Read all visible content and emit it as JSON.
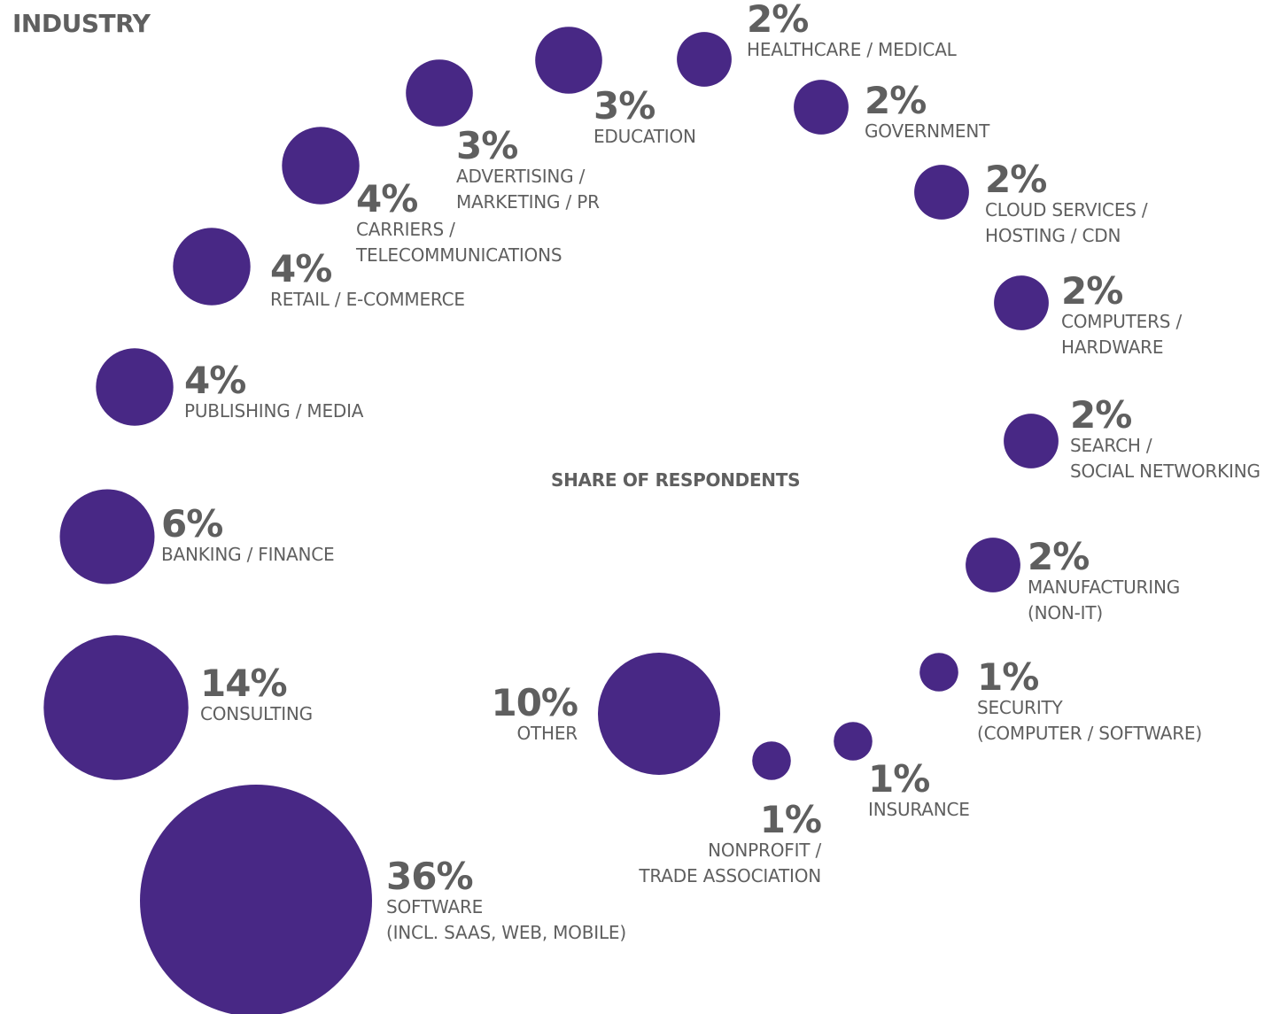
{
  "title": "INDUSTRY",
  "subtitle": "SHARE OF RESPONDENTS",
  "colors": {
    "bubble": "#482885",
    "text": "#5f5f5f"
  },
  "chart_data": {
    "type": "bubble",
    "title": "INDUSTRY",
    "subtitle": "SHARE OF RESPONDENTS",
    "unit": "%",
    "items": [
      {
        "category": "SOFTWARE (INCL. SAAS, WEB, MOBILE)",
        "value": 36,
        "pct_label": "36%",
        "lines": [
          "SOFTWARE",
          "(INCL. SAAS, WEB, MOBILE)"
        ]
      },
      {
        "category": "CONSULTING",
        "value": 14,
        "pct_label": "14%",
        "lines": [
          "CONSULTING"
        ]
      },
      {
        "category": "BANKING / FINANCE",
        "value": 6,
        "pct_label": "6%",
        "lines": [
          "BANKING / FINANCE"
        ]
      },
      {
        "category": "PUBLISHING / MEDIA",
        "value": 4,
        "pct_label": "4%",
        "lines": [
          "PUBLISHING / MEDIA"
        ]
      },
      {
        "category": "RETAIL / E-COMMERCE",
        "value": 4,
        "pct_label": "4%",
        "lines": [
          "RETAIL / E-COMMERCE"
        ]
      },
      {
        "category": "CARRIERS / TELECOMMUNICATIONS",
        "value": 4,
        "pct_label": "4%",
        "lines": [
          "CARRIERS /",
          "TELECOMMUNICATIONS"
        ]
      },
      {
        "category": "ADVERTISING / MARKETING / PR",
        "value": 3,
        "pct_label": "3%",
        "lines": [
          "ADVERTISING /",
          "MARKETING / PR"
        ]
      },
      {
        "category": "EDUCATION",
        "value": 3,
        "pct_label": "3%",
        "lines": [
          "EDUCATION"
        ]
      },
      {
        "category": "HEALTHCARE / MEDICAL",
        "value": 2,
        "pct_label": "2%",
        "lines": [
          "HEALTHCARE / MEDICAL"
        ]
      },
      {
        "category": "GOVERNMENT",
        "value": 2,
        "pct_label": "2%",
        "lines": [
          "GOVERNMENT"
        ]
      },
      {
        "category": "CLOUD SERVICES / HOSTING / CDN",
        "value": 2,
        "pct_label": "2%",
        "lines": [
          "CLOUD SERVICES /",
          "HOSTING / CDN"
        ]
      },
      {
        "category": "COMPUTERS / HARDWARE",
        "value": 2,
        "pct_label": "2%",
        "lines": [
          "COMPUTERS /",
          "HARDWARE"
        ]
      },
      {
        "category": "SEARCH / SOCIAL NETWORKING",
        "value": 2,
        "pct_label": "2%",
        "lines": [
          "SEARCH /",
          "SOCIAL NETWORKING"
        ]
      },
      {
        "category": "MANUFACTURING (NON-IT)",
        "value": 2,
        "pct_label": "2%",
        "lines": [
          "MANUFACTURING",
          "(NON-IT)"
        ]
      },
      {
        "category": "SECURITY (COMPUTER / SOFTWARE)",
        "value": 1,
        "pct_label": "1%",
        "lines": [
          "SECURITY",
          "(COMPUTER / SOFTWARE)"
        ]
      },
      {
        "category": "INSURANCE",
        "value": 1,
        "pct_label": "1%",
        "lines": [
          "INSURANCE"
        ]
      },
      {
        "category": "NONPROFIT / TRADE ASSOCIATION",
        "value": 1,
        "pct_label": "1%",
        "lines": [
          "NONPROFIT /",
          "TRADE ASSOCIATION"
        ]
      },
      {
        "category": "OTHER",
        "value": 10,
        "pct_label": "10%",
        "lines": [
          "OTHER"
        ]
      }
    ]
  }
}
